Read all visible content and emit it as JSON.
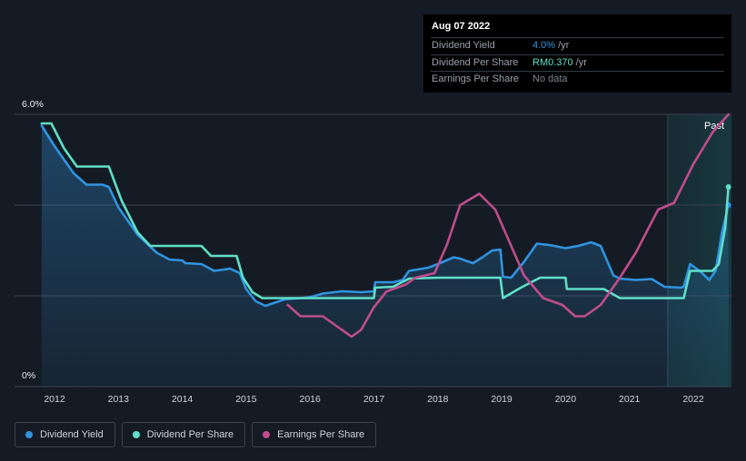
{
  "tooltip": {
    "date": "Aug 07 2022",
    "rows": [
      {
        "label": "Dividend Yield",
        "value": "4.0%",
        "unit": "/yr",
        "color": "#2f94e0"
      },
      {
        "label": "Dividend Per Share",
        "value": "RM0.370",
        "unit": "/yr",
        "color": "#5fe0c8"
      },
      {
        "label": "Earnings Per Share",
        "value": "No data",
        "unit": "",
        "color": "#7d858f"
      }
    ]
  },
  "legend": [
    {
      "label": "Dividend Yield",
      "color": "#2f94e0"
    },
    {
      "label": "Dividend Per Share",
      "color": "#5fe0c8"
    },
    {
      "label": "Earnings Per Share",
      "color": "#c04d8c"
    }
  ],
  "chart_data": {
    "type": "line",
    "title": "",
    "xlabel": "",
    "ylabel": "",
    "ylim": [
      0,
      6
    ],
    "xlim": [
      2011.5,
      2022.6
    ],
    "y_tick_labels": [
      {
        "value": 6,
        "label": "6.0%"
      },
      {
        "value": 0,
        "label": "0%"
      }
    ],
    "x_ticks": [
      2012,
      2013,
      2014,
      2015,
      2016,
      2017,
      2018,
      2019,
      2020,
      2021,
      2022
    ],
    "past_label": "Past",
    "past_start": 2021.6,
    "series": [
      {
        "name": "Dividend Yield",
        "color": "#2f94e0",
        "fill": true,
        "points": [
          [
            2011.8,
            5.75
          ],
          [
            2012.0,
            5.3
          ],
          [
            2012.3,
            4.7
          ],
          [
            2012.5,
            4.45
          ],
          [
            2012.75,
            4.45
          ],
          [
            2012.85,
            4.4
          ],
          [
            2013.0,
            3.95
          ],
          [
            2013.3,
            3.35
          ],
          [
            2013.6,
            2.95
          ],
          [
            2013.8,
            2.8
          ],
          [
            2014.0,
            2.78
          ],
          [
            2014.05,
            2.72
          ],
          [
            2014.3,
            2.7
          ],
          [
            2014.5,
            2.55
          ],
          [
            2014.75,
            2.6
          ],
          [
            2014.9,
            2.5
          ],
          [
            2015.0,
            2.15
          ],
          [
            2015.15,
            1.88
          ],
          [
            2015.3,
            1.78
          ],
          [
            2015.45,
            1.85
          ],
          [
            2015.6,
            1.92
          ],
          [
            2016.0,
            1.97
          ],
          [
            2016.2,
            2.05
          ],
          [
            2016.5,
            2.1
          ],
          [
            2016.8,
            2.08
          ],
          [
            2017.0,
            2.1
          ],
          [
            2017.02,
            2.3
          ],
          [
            2017.3,
            2.3
          ],
          [
            2017.45,
            2.35
          ],
          [
            2017.55,
            2.55
          ],
          [
            2017.85,
            2.62
          ],
          [
            2018.0,
            2.7
          ],
          [
            2018.25,
            2.85
          ],
          [
            2018.35,
            2.82
          ],
          [
            2018.55,
            2.72
          ],
          [
            2018.7,
            2.85
          ],
          [
            2018.85,
            3.0
          ],
          [
            2018.98,
            3.02
          ],
          [
            2019.02,
            2.42
          ],
          [
            2019.15,
            2.4
          ],
          [
            2019.35,
            2.75
          ],
          [
            2019.55,
            3.15
          ],
          [
            2019.75,
            3.12
          ],
          [
            2020.0,
            3.05
          ],
          [
            2020.2,
            3.1
          ],
          [
            2020.4,
            3.18
          ],
          [
            2020.55,
            3.1
          ],
          [
            2020.75,
            2.45
          ],
          [
            2020.85,
            2.38
          ],
          [
            2021.1,
            2.35
          ],
          [
            2021.35,
            2.37
          ],
          [
            2021.55,
            2.2
          ],
          [
            2021.8,
            2.18
          ],
          [
            2021.85,
            2.2
          ],
          [
            2021.95,
            2.7
          ],
          [
            2022.1,
            2.55
          ],
          [
            2022.25,
            2.35
          ],
          [
            2022.35,
            2.55
          ],
          [
            2022.45,
            3.4
          ],
          [
            2022.55,
            4.0
          ]
        ]
      },
      {
        "name": "Dividend Per Share",
        "color": "#5fe0c8",
        "fill": false,
        "points": [
          [
            2011.8,
            5.8
          ],
          [
            2011.95,
            5.8
          ],
          [
            2012.15,
            5.25
          ],
          [
            2012.35,
            4.85
          ],
          [
            2012.85,
            4.85
          ],
          [
            2013.05,
            4.1
          ],
          [
            2013.3,
            3.4
          ],
          [
            2013.5,
            3.1
          ],
          [
            2013.7,
            3.1
          ],
          [
            2014.3,
            3.1
          ],
          [
            2014.45,
            2.88
          ],
          [
            2014.85,
            2.88
          ],
          [
            2014.95,
            2.4
          ],
          [
            2015.1,
            2.08
          ],
          [
            2015.25,
            1.95
          ],
          [
            2016.0,
            1.95
          ],
          [
            2017.0,
            1.95
          ],
          [
            2017.02,
            2.18
          ],
          [
            2017.3,
            2.2
          ],
          [
            2017.55,
            2.38
          ],
          [
            2018.0,
            2.4
          ],
          [
            2018.5,
            2.4
          ],
          [
            2018.98,
            2.4
          ],
          [
            2019.02,
            1.95
          ],
          [
            2019.3,
            2.18
          ],
          [
            2019.6,
            2.4
          ],
          [
            2020.0,
            2.4
          ],
          [
            2020.02,
            2.15
          ],
          [
            2020.6,
            2.15
          ],
          [
            2020.85,
            1.95
          ],
          [
            2021.2,
            1.95
          ],
          [
            2021.85,
            1.95
          ],
          [
            2021.95,
            2.55
          ],
          [
            2022.3,
            2.55
          ],
          [
            2022.4,
            2.7
          ],
          [
            2022.5,
            3.5
          ],
          [
            2022.55,
            4.4
          ]
        ]
      },
      {
        "name": "Earnings Per Share",
        "color": "#c04d8c",
        "fill": false,
        "points": [
          [
            2015.65,
            1.8
          ],
          [
            2015.85,
            1.55
          ],
          [
            2016.0,
            1.55
          ],
          [
            2016.2,
            1.55
          ],
          [
            2016.45,
            1.3
          ],
          [
            2016.65,
            1.1
          ],
          [
            2016.8,
            1.25
          ],
          [
            2017.0,
            1.75
          ],
          [
            2017.2,
            2.1
          ],
          [
            2017.5,
            2.25
          ],
          [
            2017.65,
            2.4
          ],
          [
            2017.95,
            2.5
          ],
          [
            2018.15,
            3.15
          ],
          [
            2018.35,
            4.0
          ],
          [
            2018.65,
            4.25
          ],
          [
            2018.9,
            3.9
          ],
          [
            2019.15,
            3.1
          ],
          [
            2019.35,
            2.45
          ],
          [
            2019.65,
            1.95
          ],
          [
            2019.95,
            1.8
          ],
          [
            2020.15,
            1.55
          ],
          [
            2020.3,
            1.55
          ],
          [
            2020.55,
            1.8
          ],
          [
            2020.85,
            2.4
          ],
          [
            2021.1,
            2.95
          ],
          [
            2021.45,
            3.9
          ],
          [
            2021.7,
            4.05
          ],
          [
            2022.0,
            4.9
          ],
          [
            2022.3,
            5.6
          ],
          [
            2022.55,
            6.0
          ]
        ]
      }
    ]
  }
}
